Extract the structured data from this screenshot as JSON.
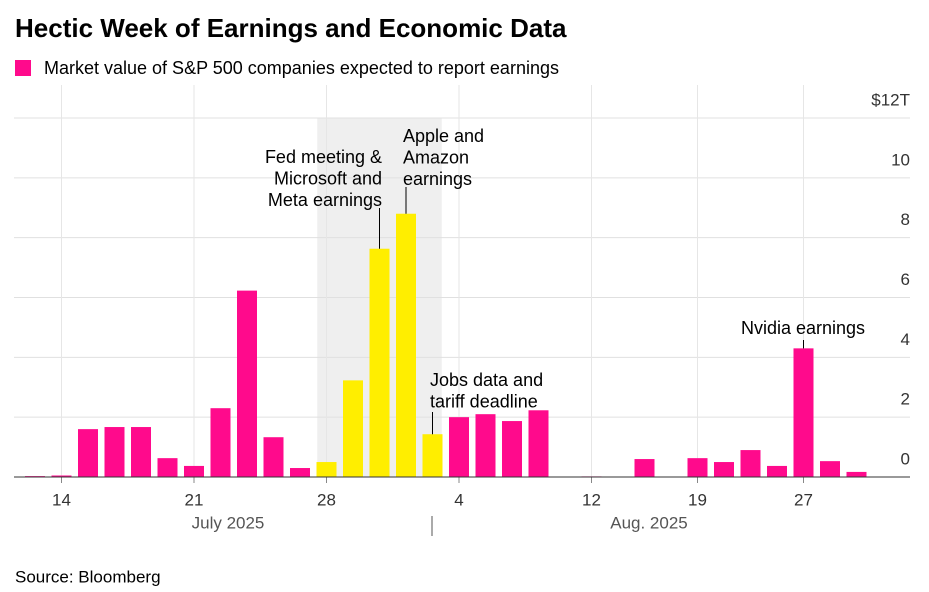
{
  "chart_data": {
    "type": "bar",
    "title": "Hectic Week of Earnings and Economic Data",
    "series": [
      {
        "name": "Market value of S&P 500 companies expected to report earnings",
        "color": "#ff0a8c",
        "values": [
          0.03,
          0.05,
          1.6,
          1.67,
          1.67,
          0.63,
          0.37,
          2.3,
          6.23,
          1.33,
          0.3,
          0.5,
          3.23,
          7.63,
          8.8,
          1.43,
          2.0,
          2.1,
          1.87,
          2.23,
          0,
          0.02,
          0,
          0.6,
          0,
          0.63,
          0.5,
          0.9,
          0.37,
          4.3,
          0.53,
          0.17
        ]
      }
    ],
    "highlight_color": "#ffee00",
    "highlight": [
      11,
      15
    ],
    "categories": [
      null,
      "14",
      null,
      null,
      null,
      null,
      "21",
      null,
      null,
      null,
      null,
      "28",
      null,
      null,
      null,
      null,
      "4",
      null,
      null,
      null,
      null,
      "12",
      null,
      null,
      null,
      "19",
      null,
      null,
      null,
      "27",
      null,
      null
    ],
    "months": [
      "July 2025",
      "Aug. 2025"
    ],
    "ylim": [
      0,
      12
    ],
    "yticks": [
      0,
      2,
      4,
      6,
      8,
      10,
      {
        "value": 12,
        "label": "$12T"
      }
    ],
    "grid": true,
    "annotations": [
      {
        "lines": [
          "Fed meeting &",
          "Microsoft and",
          "Meta earnings"
        ],
        "index": 13
      },
      {
        "lines": [
          "Apple and",
          "Amazon",
          "earnings"
        ],
        "index": 14
      },
      {
        "lines": [
          "Jobs data and",
          "tariff deadline"
        ],
        "index": 15
      },
      {
        "lines": [
          "Nvidia earnings"
        ],
        "index": 29
      }
    ],
    "source": "Source: Bloomberg"
  }
}
